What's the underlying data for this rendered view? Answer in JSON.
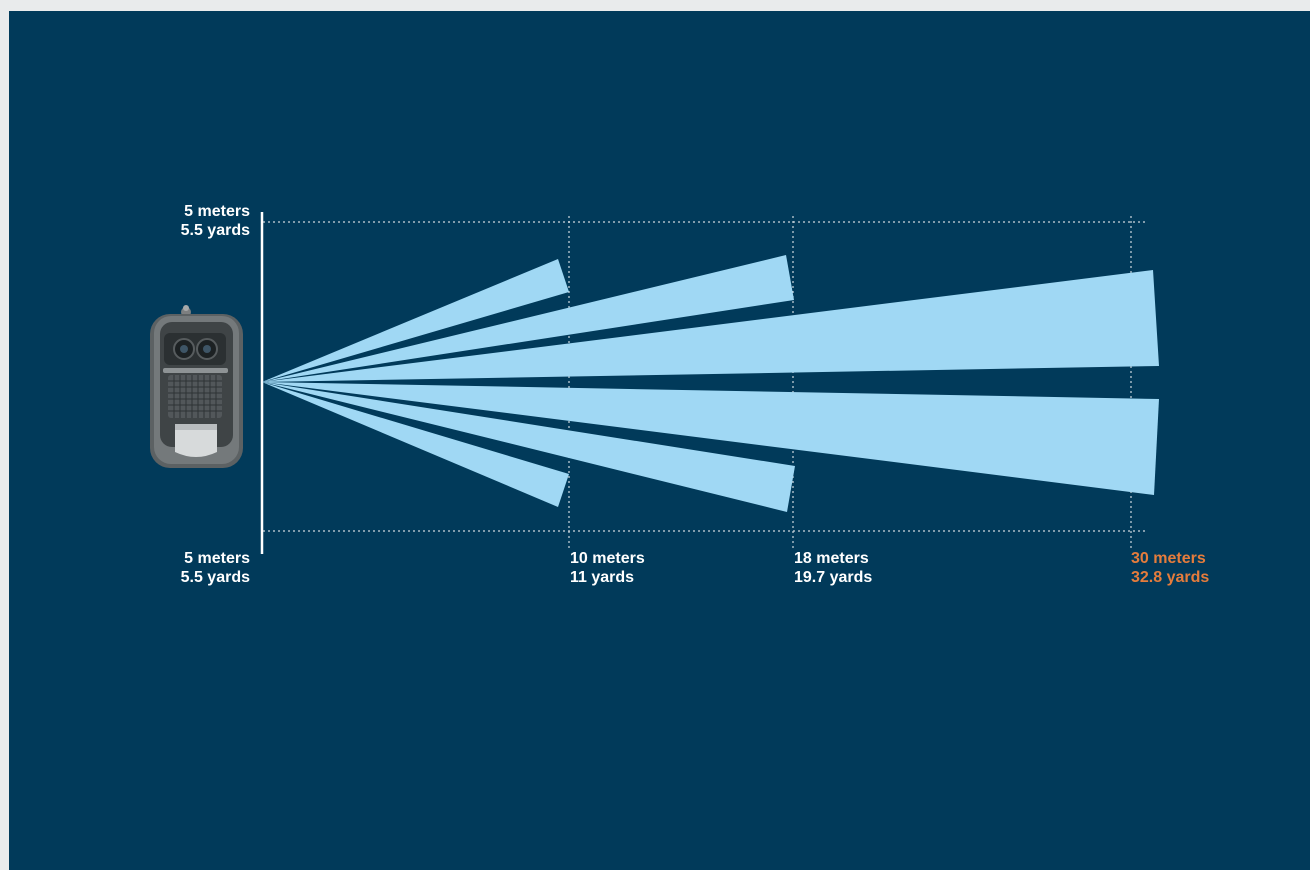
{
  "device": {
    "icon": "motion-sensor-camera-icon"
  },
  "range_labels": {
    "top_left": {
      "meters": "5 meters",
      "yards": "5.5 yards"
    },
    "bottom_left": {
      "meters": "5 meters",
      "yards": "5.5 yards"
    },
    "mark_10": {
      "meters": "10 meters",
      "yards": "11 yards"
    },
    "mark_18": {
      "meters": "18 meters",
      "yards": "19.7 yards"
    },
    "mark_30": {
      "meters": "30 meters",
      "yards": "32.8 yards"
    }
  },
  "colors": {
    "background": "#013a5a",
    "beam": "#a0d8f4",
    "label": "#ffffff",
    "accent": "#e57c3c"
  }
}
